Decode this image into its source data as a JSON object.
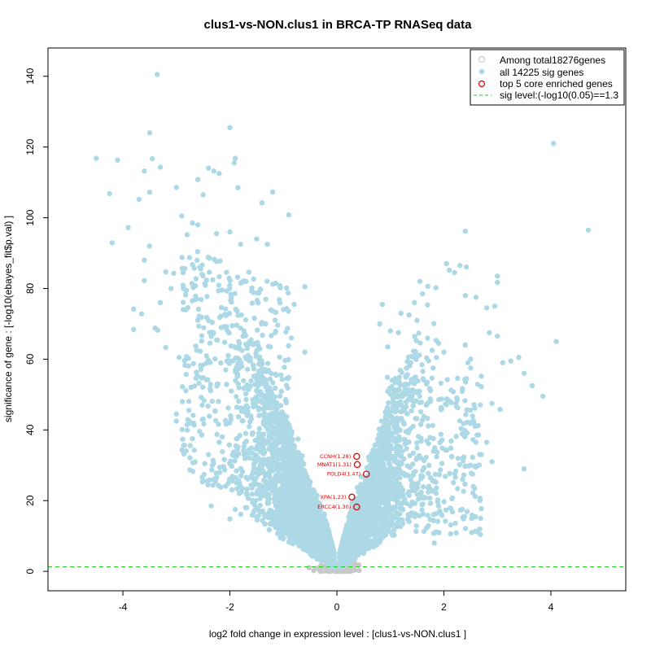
{
  "chart_data": {
    "type": "scatter",
    "title": "clus1-vs-NON.clus1 in BRCA-TP RNASeq data",
    "xlabel": "log2 fold change in expression level : [clus1-vs-NON.clus1 ]",
    "ylabel": "significance of gene : [-log10(ebayes_fit$p.val) ]",
    "xlim": [
      -5.4,
      5.4
    ],
    "ylim": [
      -5.5,
      148
    ],
    "xticks": [
      -4,
      -2,
      0,
      2,
      4
    ],
    "yticks": [
      0,
      20,
      40,
      60,
      80,
      100,
      120,
      140
    ],
    "xtick_labels": [
      "-4",
      "-2",
      "0",
      "2",
      "4"
    ],
    "ytick_labels": [
      "0",
      "20",
      "40",
      "60",
      "80",
      "100",
      "120",
      "140"
    ],
    "grid": false,
    "legend_position": "top-right",
    "legend": [
      {
        "label": "Among total18276genes",
        "marker": "open-circle",
        "color": "#c8c8c8"
      },
      {
        "label": "all 14225 sig genes",
        "marker": "filled-circle",
        "color": "#add8e6"
      },
      {
        "label": "top 5 core enriched genes",
        "marker": "open-circle",
        "color": "#e00000"
      },
      {
        "label": "sig level:(-log10(0.05)==1.3",
        "marker": "dashed-line",
        "color": "#00cc00"
      }
    ],
    "sig_level": 1.3,
    "colors": {
      "sig": "#add8e6",
      "nonsig": "#c8c8c8",
      "core": "#e00000",
      "sigline": "#22cc22"
    },
    "core_genes": [
      {
        "label": "CCNH(1.28)",
        "x": 0.37,
        "y": 32.5
      },
      {
        "label": "MNAT1(1.31)",
        "x": 0.38,
        "y": 30.2
      },
      {
        "label": "POLD4(1.47)",
        "x": 0.55,
        "y": 27.5
      },
      {
        "label": "XPA(1.23)",
        "x": 0.28,
        "y": 21.0
      },
      {
        "label": "ERCC4(1.30)",
        "x": 0.37,
        "y": 18.2
      }
    ],
    "outliers": [
      [
        -3.36,
        140.5
      ],
      [
        -4.5,
        116.8
      ],
      [
        -4.1,
        116.3
      ],
      [
        -3.45,
        116.7
      ],
      [
        -3.6,
        113.2
      ],
      [
        -3.3,
        114.3
      ],
      [
        -4.25,
        106.8
      ],
      [
        -3.7,
        105.2
      ],
      [
        -3.5,
        107.2
      ],
      [
        -3.9,
        97.2
      ],
      [
        -4.2,
        92.9
      ],
      [
        -3.6,
        88
      ],
      [
        -3.6,
        82.2
      ],
      [
        -3.8,
        74.2
      ],
      [
        -3.65,
        72.8
      ],
      [
        -3.8,
        68.4
      ],
      [
        -3.4,
        68.8
      ],
      [
        -3.35,
        68.2
      ],
      [
        -3.5,
        124
      ],
      [
        -2.0,
        125.5
      ],
      [
        -1.9,
        116.8
      ],
      [
        -1.92,
        115.5
      ],
      [
        -2.4,
        114.0
      ],
      [
        -2.3,
        113.2
      ],
      [
        -2.2,
        112.5
      ],
      [
        -2.6,
        110.8
      ],
      [
        -3.0,
        108.6
      ],
      [
        -1.2,
        107.3
      ],
      [
        -1.85,
        108.5
      ],
      [
        -1.4,
        104.2
      ],
      [
        -0.9,
        100.8
      ],
      [
        -2.5,
        106.5
      ],
      [
        -2.9,
        100.5
      ],
      [
        -2.7,
        98.5
      ],
      [
        -2.8,
        95.2
      ],
      [
        -3.2,
        84.7
      ],
      [
        -3.05,
        84.3
      ],
      [
        -3.3,
        76.0
      ],
      [
        -3.1,
        80.0
      ],
      [
        -3.2,
        63.3
      ],
      [
        -2.95,
        60.5
      ],
      [
        -2.6,
        98.0
      ],
      [
        -2.25,
        95.5
      ],
      [
        -2.0,
        96.0
      ],
      [
        -1.5,
        94.0
      ],
      [
        -1.3,
        92.5
      ],
      [
        -1.8,
        92.5
      ],
      [
        -0.6,
        80.5
      ],
      [
        -0.8,
        75.5
      ],
      [
        -0.6,
        62.0
      ],
      [
        -0.85,
        66.0
      ],
      [
        -3.0,
        44.5
      ],
      [
        -3.0,
        42.5
      ],
      [
        -2.8,
        41.5
      ],
      [
        -2.7,
        37.5
      ],
      [
        -2.4,
        33.0
      ],
      [
        -2.5,
        25.5
      ],
      [
        -2.35,
        18.5
      ],
      [
        -2.0,
        14.8
      ],
      [
        -1.9,
        17.5
      ],
      [
        4.05,
        121.0
      ],
      [
        4.7,
        96.5
      ],
      [
        4.1,
        65.0
      ],
      [
        2.4,
        96.2
      ],
      [
        2.05,
        87.0
      ],
      [
        2.2,
        84.5
      ],
      [
        2.3,
        86.5
      ],
      [
        2.4,
        78.0
      ],
      [
        2.6,
        77.5
      ],
      [
        2.8,
        74.5
      ],
      [
        2.95,
        75.0
      ],
      [
        3.0,
        83.5
      ],
      [
        3.0,
        81.7
      ],
      [
        2.85,
        67.5
      ],
      [
        3.0,
        66.5
      ],
      [
        3.25,
        59.5
      ],
      [
        3.4,
        60.5
      ],
      [
        3.1,
        59.0
      ],
      [
        3.5,
        56.0
      ],
      [
        3.65,
        52.5
      ],
      [
        3.85,
        49.5
      ],
      [
        2.5,
        57.5
      ],
      [
        2.7,
        55.2
      ],
      [
        3.05,
        45.8
      ],
      [
        2.9,
        47.5
      ],
      [
        2.8,
        36.5
      ],
      [
        2.6,
        36.5
      ],
      [
        3.5,
        29.0
      ],
      [
        2.7,
        33.0
      ],
      [
        2.9,
        31.0
      ],
      [
        2.5,
        30.0
      ],
      [
        2.6,
        29.5
      ],
      [
        2.55,
        24.0
      ],
      [
        2.35,
        26.0
      ],
      [
        2.15,
        20.5
      ],
      [
        1.9,
        18.5
      ],
      [
        1.82,
        8.0
      ],
      [
        1.85,
        80.2
      ],
      [
        1.7,
        80.6
      ],
      [
        1.55,
        82.0
      ],
      [
        1.6,
        78.5
      ],
      [
        1.45,
        76.0
      ],
      [
        1.35,
        72.5
      ],
      [
        1.2,
        73.0
      ],
      [
        1.15,
        67.5
      ],
      [
        0.8,
        70.0
      ],
      [
        0.85,
        75.5
      ],
      [
        1.0,
        68.0
      ],
      [
        0.95,
        63.5
      ],
      [
        1.9,
        64.5
      ],
      [
        2.4,
        64.0
      ],
      [
        2.0,
        62.0
      ],
      [
        2.5,
        60.0
      ],
      [
        2.45,
        59.0
      ],
      [
        1.8,
        57.5
      ]
    ]
  }
}
